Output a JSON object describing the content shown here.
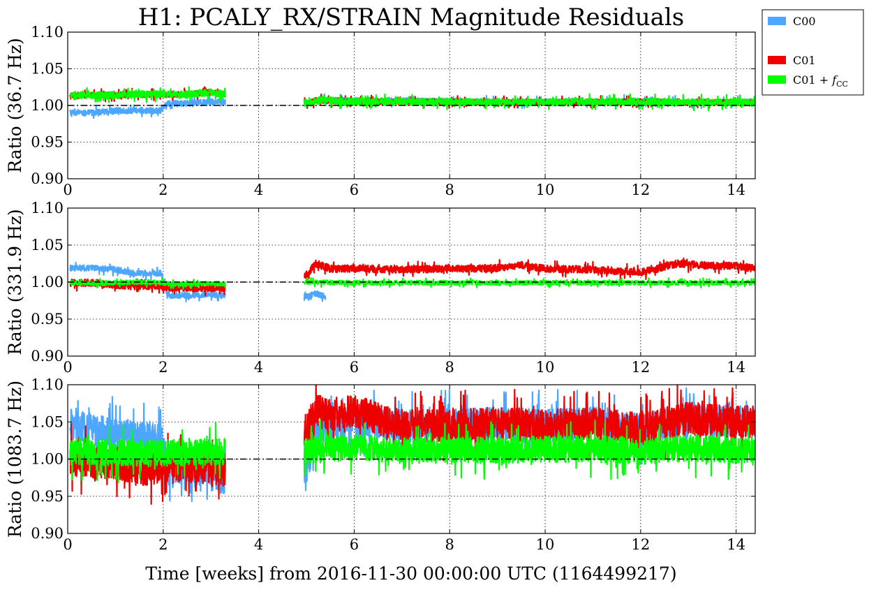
{
  "chart_data": {
    "type": "line",
    "title": "H1: PCALY_RX/STRAIN Magnitude Residuals",
    "xlabel": "Time [weeks] from 2016-11-30 00:00:00 UTC (1164499217)",
    "xlim": [
      0,
      14.4
    ],
    "xticks": [
      0,
      2,
      4,
      6,
      8,
      10,
      12,
      14
    ],
    "ylim": [
      0.9,
      1.1
    ],
    "yticks": [
      0.9,
      0.95,
      1.0,
      1.05,
      1.1
    ],
    "grid": true,
    "reference_line": 1.0,
    "legend": {
      "placement": "outside-top-right",
      "entries": [
        {
          "label": "C00",
          "color": "#4da6ff"
        },
        {
          "label": "C01",
          "color": "#ee0000"
        },
        {
          "label": "C01 + f_CC",
          "label_main": "C01 + ",
          "label_italic": "f",
          "label_sub": "CC",
          "color": "#00ff00"
        }
      ]
    },
    "panels": [
      {
        "ylabel": "Ratio (36.7 Hz)",
        "series": [
          {
            "name": "C00",
            "color": "#4da6ff",
            "x": [
              0.05,
              0.5,
              1.0,
              1.5,
              1.95,
              2.1,
              2.5,
              3.0,
              3.25,
              5.0,
              5.3,
              6.0,
              7.0,
              8.0,
              9.0,
              10.0,
              11.0,
              12.0,
              13.0,
              14.0,
              14.4
            ],
            "y": [
              0.99,
              0.99,
              0.993,
              0.993,
              0.993,
              1.003,
              1.003,
              1.005,
              1.005,
              1.002,
              1.008,
              1.007,
              1.006,
              1.006,
              1.004,
              1.005,
              1.005,
              1.006,
              1.004,
              1.004,
              1.005
            ],
            "noise": 0.004
          },
          {
            "name": "C01",
            "color": "#ee0000",
            "x": [
              0.05,
              0.5,
              1.0,
              1.5,
              1.95,
              2.1,
              2.5,
              3.0,
              3.25,
              5.0,
              5.3,
              6.0,
              7.0,
              8.0,
              9.0,
              10.0,
              11.0,
              12.0,
              13.0,
              14.0,
              14.4
            ],
            "y": [
              1.013,
              1.014,
              1.014,
              1.015,
              1.015,
              1.015,
              1.015,
              1.018,
              1.015,
              1.003,
              1.007,
              1.005,
              1.005,
              1.005,
              1.004,
              1.004,
              1.005,
              1.005,
              1.004,
              1.004,
              1.004
            ],
            "noise": 0.004
          },
          {
            "name": "C01 + f_CC",
            "color": "#00ff00",
            "x": [
              0.05,
              0.5,
              1.0,
              1.5,
              1.95,
              2.1,
              2.5,
              3.0,
              3.25,
              5.0,
              5.3,
              6.0,
              7.0,
              8.0,
              9.0,
              10.0,
              11.0,
              12.0,
              13.0,
              14.0,
              14.4
            ],
            "y": [
              1.013,
              1.014,
              1.014,
              1.015,
              1.015,
              1.015,
              1.015,
              1.018,
              1.015,
              1.003,
              1.007,
              1.005,
              1.005,
              1.005,
              1.004,
              1.004,
              1.005,
              1.005,
              1.004,
              1.004,
              1.004
            ],
            "noise": 0.005
          }
        ]
      },
      {
        "ylabel": "Ratio (331.9 Hz)",
        "series": [
          {
            "name": "C00",
            "color": "#4da6ff",
            "x": [
              0.05,
              0.5,
              1.0,
              1.4,
              1.95,
              2.1,
              2.5,
              3.0,
              3.25,
              5.0,
              5.2,
              5.4
            ],
            "y": [
              1.019,
              1.019,
              1.017,
              1.012,
              1.012,
              0.982,
              0.982,
              0.983,
              0.982,
              0.98,
              0.985,
              0.98
            ],
            "noise": 0.004
          },
          {
            "name": "C01",
            "color": "#ee0000",
            "x": [
              0.05,
              0.5,
              1.0,
              1.5,
              1.95,
              2.1,
              2.5,
              3.0,
              3.25,
              5.0,
              5.2,
              5.5,
              6.0,
              7.0,
              8.0,
              9.0,
              9.5,
              10.0,
              11.0,
              12.0,
              12.8,
              13.5,
              14.0,
              14.4
            ],
            "y": [
              0.999,
              0.999,
              0.996,
              0.995,
              0.994,
              0.993,
              0.992,
              0.992,
              0.992,
              1.01,
              1.025,
              1.018,
              1.018,
              1.017,
              1.018,
              1.019,
              1.023,
              1.018,
              1.017,
              1.013,
              1.025,
              1.022,
              1.022,
              1.018
            ],
            "noise": 0.005
          },
          {
            "name": "C01 + f_CC",
            "color": "#00ff00",
            "x": [
              0.05,
              0.5,
              1.0,
              1.5,
              1.95,
              2.1,
              2.5,
              3.0,
              3.25,
              5.0,
              6.0,
              7.0,
              8.0,
              9.0,
              10.0,
              11.0,
              12.0,
              13.0,
              14.0,
              14.4
            ],
            "y": [
              0.999,
              0.998,
              0.999,
              1.0,
              0.999,
              0.998,
              0.997,
              0.998,
              0.998,
              1.0,
              0.999,
              0.999,
              0.999,
              0.999,
              0.999,
              0.999,
              0.999,
              0.999,
              0.999,
              0.999
            ],
            "noise": 0.003
          }
        ]
      },
      {
        "ylabel": "Ratio (1083.7 Hz)",
        "series": [
          {
            "name": "C00",
            "color": "#4da6ff",
            "x": [
              0.05,
              0.5,
              1.0,
              1.4,
              1.95,
              2.1,
              2.5,
              3.0,
              3.25,
              5.0,
              5.2,
              5.5,
              6.0,
              7.0,
              8.0,
              9.0,
              10.0,
              11.0,
              12.0,
              13.0,
              14.0,
              14.4
            ],
            "y": [
              1.045,
              1.04,
              1.035,
              1.03,
              1.028,
              0.985,
              0.988,
              0.985,
              0.975,
              0.985,
              1.045,
              1.04,
              1.05,
              1.045,
              1.045,
              1.048,
              1.045,
              1.048,
              1.04,
              1.055,
              1.05,
              1.05
            ],
            "noise": 0.022
          },
          {
            "name": "C01",
            "color": "#ee0000",
            "x": [
              0.05,
              0.5,
              1.0,
              1.5,
              1.95,
              2.1,
              2.5,
              3.0,
              3.25,
              5.0,
              5.2,
              5.5,
              6.0,
              7.0,
              8.0,
              9.0,
              10.0,
              11.0,
              12.0,
              13.0,
              14.0,
              14.4
            ],
            "y": [
              1.0,
              0.995,
              0.995,
              0.985,
              0.99,
              0.992,
              0.99,
              0.988,
              0.985,
              1.04,
              1.065,
              1.06,
              1.065,
              1.045,
              1.045,
              1.048,
              1.045,
              1.047,
              1.04,
              1.055,
              1.05,
              1.05
            ],
            "noise": 0.022
          },
          {
            "name": "C01 + f_CC",
            "color": "#00ff00",
            "x": [
              0.05,
              0.5,
              1.0,
              1.5,
              1.95,
              2.1,
              2.5,
              3.0,
              3.25,
              5.0,
              5.5,
              6.0,
              7.0,
              8.0,
              9.0,
              10.0,
              11.0,
              12.0,
              13.0,
              14.0,
              14.4
            ],
            "y": [
              1.01,
              1.01,
              1.008,
              1.008,
              1.008,
              1.008,
              1.01,
              1.01,
              1.01,
              1.01,
              1.015,
              1.015,
              1.012,
              1.012,
              1.012,
              1.013,
              1.014,
              1.01,
              1.015,
              1.012,
              1.012
            ],
            "noise": 0.018
          }
        ]
      }
    ]
  }
}
